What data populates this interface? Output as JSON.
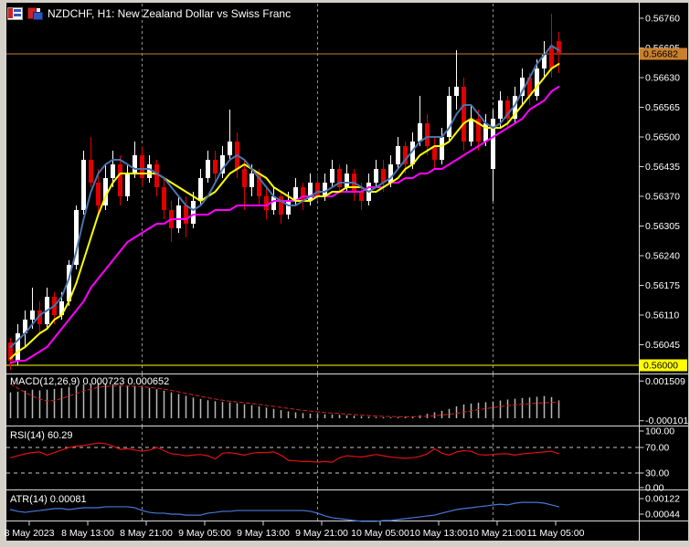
{
  "window": {
    "title": "NZDCHF, H1: New Zealand Dollar vs Swiss Franc"
  },
  "indicator_labels": {
    "macd": "MACD(12,26,9) 0.000723 0.000652",
    "rsi": "RSI(14) 60.29",
    "atr": "ATR(14) 0.00081"
  },
  "price_axis": {
    "tick_labels": [
      "0.56760",
      "0.56695",
      "0.56630",
      "0.56565",
      "0.56500",
      "0.56435",
      "0.56370",
      "0.56305",
      "0.56240",
      "0.56175",
      "0.56110",
      "0.56045"
    ],
    "current_price_label": "0.56682",
    "level_label": "0.56000"
  },
  "time_axis": {
    "labels": [
      "8 May 2023",
      "8 May 13:00",
      "8 May 21:00",
      "9 May 05:00",
      "9 May 13:00",
      "9 May 21:00",
      "10 May 05:00",
      "10 May 13:00",
      "10 May 21:00",
      "11 May 05:00"
    ]
  },
  "colors": {
    "background": "#000000",
    "frame": "#d4d0c8",
    "panel_border": "#dadada",
    "grid": "#8f8f8f",
    "bull": "#ffffff",
    "bear": "#e00000",
    "ma_fast": "#4a72aa",
    "ma_mid": "#ffff00",
    "ma_slow": "#ff00ff",
    "macd_hist": "#b8b8b8",
    "macd_signal": "#d42020",
    "rsi_line": "#e01010",
    "rsi_levels": "#c8c8c8",
    "atr_line": "#4878d8",
    "price_line": "#c9802e",
    "level_line": "#ffff00",
    "axis_text": "#ffffff",
    "marker_text": "#000000"
  },
  "chart_data": {
    "type": "candlestick",
    "symbol": "NZDCHF",
    "timeframe": "H1",
    "description": "New Zealand Dollar vs Swiss Franc",
    "current_price": 0.56682,
    "horizontal_line_level": 0.56,
    "price_axis_ticks": [
      0.5676,
      0.56695,
      0.5663,
      0.56565,
      0.565,
      0.56435,
      0.5637,
      0.56305,
      0.5624,
      0.56175,
      0.5611,
      0.56045
    ],
    "candles": [
      [
        0.5605,
        0.5606,
        0.5599,
        0.5601
      ],
      [
        0.5601,
        0.5609,
        0.56,
        0.5607
      ],
      [
        0.5607,
        0.5612,
        0.5604,
        0.561
      ],
      [
        0.561,
        0.5617,
        0.5608,
        0.5612
      ],
      [
        0.5612,
        0.5614,
        0.5607,
        0.5609
      ],
      [
        0.5609,
        0.5617,
        0.5608,
        0.5615
      ],
      [
        0.5615,
        0.5616,
        0.5609,
        0.5611
      ],
      [
        0.5611,
        0.5616,
        0.561,
        0.5614
      ],
      [
        0.5614,
        0.5623,
        0.5613,
        0.5622
      ],
      [
        0.5622,
        0.5635,
        0.5621,
        0.5634
      ],
      [
        0.5634,
        0.5647,
        0.5633,
        0.5645
      ],
      [
        0.5645,
        0.565,
        0.5639,
        0.564
      ],
      [
        0.564,
        0.5643,
        0.5633,
        0.5635
      ],
      [
        0.5635,
        0.5644,
        0.5634,
        0.5641
      ],
      [
        0.5641,
        0.5647,
        0.5639,
        0.5644
      ],
      [
        0.5644,
        0.5646,
        0.5635,
        0.5637
      ],
      [
        0.5637,
        0.5644,
        0.5636,
        0.5642
      ],
      [
        0.5642,
        0.5649,
        0.5641,
        0.5646
      ],
      [
        0.5646,
        0.5648,
        0.5639,
        0.5641
      ],
      [
        0.5641,
        0.5646,
        0.564,
        0.5644
      ],
      [
        0.5644,
        0.5645,
        0.5637,
        0.5639
      ],
      [
        0.5639,
        0.5641,
        0.5632,
        0.5634
      ],
      [
        0.5634,
        0.5636,
        0.5627,
        0.563
      ],
      [
        0.563,
        0.5637,
        0.5629,
        0.5635
      ],
      [
        0.5635,
        0.5637,
        0.5628,
        0.5631
      ],
      [
        0.5631,
        0.5638,
        0.563,
        0.5636
      ],
      [
        0.5636,
        0.5643,
        0.5635,
        0.5641
      ],
      [
        0.5641,
        0.5647,
        0.564,
        0.5645
      ],
      [
        0.5645,
        0.5647,
        0.564,
        0.5642
      ],
      [
        0.5642,
        0.5648,
        0.5641,
        0.5646
      ],
      [
        0.5646,
        0.5656,
        0.5645,
        0.5649
      ],
      [
        0.5649,
        0.5651,
        0.5641,
        0.5643
      ],
      [
        0.5643,
        0.5645,
        0.5634,
        0.5639
      ],
      [
        0.5639,
        0.5644,
        0.5637,
        0.5642
      ],
      [
        0.5642,
        0.5643,
        0.5635,
        0.5637
      ],
      [
        0.5637,
        0.5639,
        0.5632,
        0.5634
      ],
      [
        0.5634,
        0.5639,
        0.5633,
        0.5637
      ],
      [
        0.5637,
        0.5638,
        0.5631,
        0.5633
      ],
      [
        0.5633,
        0.5638,
        0.5632,
        0.5636
      ],
      [
        0.5636,
        0.5641,
        0.5635,
        0.5639
      ],
      [
        0.5639,
        0.564,
        0.5634,
        0.5636
      ],
      [
        0.5636,
        0.5642,
        0.5635,
        0.564
      ],
      [
        0.564,
        0.5642,
        0.5636,
        0.5637
      ],
      [
        0.5637,
        0.5642,
        0.5636,
        0.564
      ],
      [
        0.564,
        0.5645,
        0.5639,
        0.5643
      ],
      [
        0.5643,
        0.5644,
        0.5638,
        0.5639
      ],
      [
        0.5639,
        0.5644,
        0.5638,
        0.5642
      ],
      [
        0.5642,
        0.5643,
        0.5636,
        0.5638
      ],
      [
        0.5638,
        0.564,
        0.5634,
        0.5636
      ],
      [
        0.5636,
        0.5642,
        0.5635,
        0.564
      ],
      [
        0.564,
        0.5645,
        0.5639,
        0.5643
      ],
      [
        0.5643,
        0.5645,
        0.5638,
        0.564
      ],
      [
        0.564,
        0.5646,
        0.5639,
        0.5644
      ],
      [
        0.5644,
        0.565,
        0.5643,
        0.5648
      ],
      [
        0.5648,
        0.5649,
        0.5642,
        0.5644
      ],
      [
        0.5644,
        0.5651,
        0.5643,
        0.5649
      ],
      [
        0.5649,
        0.5659,
        0.5648,
        0.5653
      ],
      [
        0.5653,
        0.5655,
        0.5646,
        0.5648
      ],
      [
        0.5648,
        0.565,
        0.5643,
        0.5645
      ],
      [
        0.5645,
        0.5652,
        0.5644,
        0.565
      ],
      [
        0.565,
        0.5661,
        0.5649,
        0.5659
      ],
      [
        0.5659,
        0.5669,
        0.5656,
        0.5661
      ],
      [
        0.5661,
        0.5663,
        0.5647,
        0.5649
      ],
      [
        0.5649,
        0.5657,
        0.5648,
        0.5654
      ],
      [
        0.5654,
        0.5656,
        0.5647,
        0.5649
      ],
      [
        0.5649,
        0.5655,
        0.5648,
        0.5653
      ],
      [
        0.5643,
        0.5656,
        0.5636,
        0.5654
      ],
      [
        0.5654,
        0.566,
        0.5652,
        0.5658
      ],
      [
        0.5658,
        0.5659,
        0.5652,
        0.5654
      ],
      [
        0.5654,
        0.5661,
        0.5653,
        0.5659
      ],
      [
        0.5659,
        0.5665,
        0.5657,
        0.5663
      ],
      [
        0.5663,
        0.5664,
        0.5657,
        0.5659
      ],
      [
        0.5659,
        0.5667,
        0.5658,
        0.5665
      ],
      [
        0.5665,
        0.5671,
        0.5663,
        0.5668
      ],
      [
        0.567,
        0.5677,
        0.5663,
        0.5665
      ],
      [
        0.5671,
        0.5673,
        0.5664,
        0.56682
      ]
    ],
    "overlays": {
      "ma_fast_blue": [
        0.5604,
        0.56055,
        0.5607,
        0.5609,
        0.5611,
        0.5612,
        0.5613,
        0.5615,
        0.5619,
        0.5625,
        0.5632,
        0.5638,
        0.5642,
        0.5644,
        0.5645,
        0.5645,
        0.5644,
        0.5643,
        0.5643,
        0.5643,
        0.5642,
        0.5641,
        0.5639,
        0.5637,
        0.5635,
        0.5634,
        0.5635,
        0.5637,
        0.564,
        0.5643,
        0.5645,
        0.5646,
        0.5645,
        0.5643,
        0.5641,
        0.5639,
        0.5637,
        0.5636,
        0.5635,
        0.5635,
        0.5636,
        0.5637,
        0.5638,
        0.5638,
        0.5639,
        0.564,
        0.564,
        0.564,
        0.5639,
        0.5638,
        0.5639,
        0.564,
        0.5641,
        0.5643,
        0.5645,
        0.5647,
        0.5649,
        0.565,
        0.565,
        0.565,
        0.5652,
        0.5655,
        0.5657,
        0.5657,
        0.5655,
        0.5653,
        0.5652,
        0.5653,
        0.5655,
        0.5657,
        0.566,
        0.5663,
        0.5666,
        0.5668,
        0.567,
        0.5669
      ],
      "ma_medium_yellow": [
        0.56015,
        0.5603,
        0.5604,
        0.56055,
        0.5607,
        0.5608,
        0.561,
        0.5611,
        0.5614,
        0.5618,
        0.5623,
        0.5628,
        0.5633,
        0.5637,
        0.564,
        0.5642,
        0.5642,
        0.5642,
        0.5642,
        0.5642,
        0.5642,
        0.5641,
        0.564,
        0.5639,
        0.5638,
        0.5637,
        0.5636,
        0.5637,
        0.5638,
        0.564,
        0.5642,
        0.5643,
        0.5644,
        0.5643,
        0.5642,
        0.5641,
        0.5639,
        0.5638,
        0.5637,
        0.5636,
        0.5636,
        0.5636,
        0.5637,
        0.5637,
        0.5638,
        0.5638,
        0.5639,
        0.5639,
        0.5639,
        0.5638,
        0.5638,
        0.5639,
        0.564,
        0.5641,
        0.5643,
        0.5644,
        0.5646,
        0.5647,
        0.5648,
        0.5648,
        0.5649,
        0.5651,
        0.5653,
        0.5654,
        0.5653,
        0.5652,
        0.5652,
        0.5652,
        0.5653,
        0.5655,
        0.5657,
        0.5659,
        0.5661,
        0.5663,
        0.5665,
        0.5666
      ],
      "ma_slow_magenta": [
        0.56005,
        0.5601,
        0.5601,
        0.5602,
        0.5603,
        0.5604,
        0.5606,
        0.5608,
        0.561,
        0.5612,
        0.5614,
        0.5617,
        0.5619,
        0.5621,
        0.5623,
        0.5625,
        0.5627,
        0.5628,
        0.5629,
        0.563,
        0.5631,
        0.5631,
        0.5632,
        0.5632,
        0.5632,
        0.5633,
        0.5633,
        0.5633,
        0.5634,
        0.5634,
        0.5634,
        0.5635,
        0.5635,
        0.5635,
        0.5635,
        0.5635,
        0.5636,
        0.5636,
        0.5636,
        0.5636,
        0.5637,
        0.5637,
        0.5637,
        0.5637,
        0.5637,
        0.5638,
        0.5638,
        0.5638,
        0.5638,
        0.5639,
        0.5639,
        0.5639,
        0.564,
        0.564,
        0.5641,
        0.5641,
        0.5642,
        0.5642,
        0.5643,
        0.5643,
        0.5644,
        0.5645,
        0.5646,
        0.5647,
        0.5648,
        0.5649,
        0.565,
        0.5651,
        0.5652,
        0.5653,
        0.5654,
        0.5656,
        0.5657,
        0.5658,
        0.566,
        0.5661
      ]
    },
    "indicators": {
      "macd": {
        "label": "MACD(12,26,9)",
        "current_macd": 0.000723,
        "current_signal": 0.000652,
        "axis_labels": [
          0.001509,
          -0.000101
        ],
        "histogram": [
          0.00105,
          0.00108,
          0.00112,
          0.00116,
          0.00113,
          0.00116,
          0.00119,
          0.00122,
          0.00127,
          0.00132,
          0.00137,
          0.0014,
          0.00142,
          0.00141,
          0.00138,
          0.00135,
          0.00132,
          0.0013,
          0.00127,
          0.00123,
          0.00118,
          0.00112,
          0.00105,
          0.00098,
          0.00091,
          0.00084,
          0.00078,
          0.00073,
          0.00069,
          0.00066,
          0.00064,
          0.00061,
          0.00057,
          0.00053,
          0.00048,
          0.00043,
          0.00038,
          0.00033,
          0.00028,
          0.00024,
          0.00021,
          0.00019,
          0.00017,
          0.00016,
          0.00015,
          0.00014,
          0.00012,
          0.0001,
          8e-05,
          6e-05,
          5e-05,
          4e-05,
          4e-05,
          5e-05,
          6e-05,
          8e-05,
          0.00012,
          0.00018,
          0.00024,
          0.0003,
          0.00038,
          0.00048,
          0.00056,
          0.0006,
          0.00063,
          0.00065,
          0.00068,
          0.00072,
          0.00076,
          0.00079,
          0.00082,
          0.00084,
          0.00087,
          0.0009,
          0.00086,
          0.000723
        ],
        "signal": [
          0.0014,
          0.00122,
          0.00105,
          0.0009,
          0.00078,
          0.0007,
          0.00072,
          0.0008,
          0.0009,
          0.001,
          0.0011,
          0.00119,
          0.00125,
          0.00129,
          0.00131,
          0.00132,
          0.00131,
          0.0013,
          0.00128,
          0.00125,
          0.00122,
          0.00118,
          0.00113,
          0.00107,
          0.00101,
          0.00095,
          0.00089,
          0.00083,
          0.00078,
          0.00073,
          0.00069,
          0.00066,
          0.00063,
          0.0006,
          0.00056,
          0.00052,
          0.00048,
          0.00044,
          0.0004,
          0.00036,
          0.00032,
          0.00029,
          0.00026,
          0.00023,
          0.00021,
          0.00019,
          0.00017,
          0.00015,
          0.00013,
          0.00011,
          9e-05,
          8e-05,
          7e-05,
          6e-05,
          6e-05,
          6e-05,
          7e-05,
          8e-05,
          0.0001,
          0.00013,
          0.00016,
          0.0002,
          0.00025,
          0.0003,
          0.00035,
          0.00039,
          0.00043,
          0.00047,
          0.00051,
          0.00054,
          0.00057,
          0.00059,
          0.00061,
          0.00063,
          0.00064,
          0.000652
        ]
      },
      "rsi": {
        "label": "RSI(14)",
        "current": 60.29,
        "axis_labels": [
          100.0,
          70.0,
          30.0,
          0.0
        ],
        "levels": [
          70,
          30
        ],
        "series": [
          54,
          57,
          60,
          62,
          63,
          58,
          62,
          66,
          70,
          72,
          73,
          75,
          77,
          76,
          72,
          67,
          68,
          66,
          64,
          66,
          70,
          65,
          60,
          59,
          57,
          58,
          59,
          57,
          52,
          61,
          62,
          60,
          58,
          61,
          62,
          62,
          63,
          58,
          50,
          49,
          48,
          48,
          47,
          48,
          47,
          54,
          57,
          56,
          55,
          57,
          59,
          57,
          55,
          54,
          53,
          54,
          56,
          60,
          68,
          61,
          58,
          63,
          65,
          64,
          59,
          58,
          59,
          60,
          60,
          58,
          60,
          61,
          62,
          63,
          64,
          60.29
        ]
      },
      "atr": {
        "label": "ATR(14)",
        "current": 0.00081,
        "axis_labels": [
          0.00122,
          0.00044
        ],
        "series": [
          0.00067,
          0.00058,
          0.00053,
          0.00058,
          0.00062,
          0.00067,
          0.00072,
          0.00072,
          0.00067,
          0.00072,
          0.00076,
          0.00076,
          0.00076,
          0.00081,
          0.00081,
          0.00081,
          0.00081,
          0.00076,
          0.00062,
          0.00053,
          0.00049,
          0.00049,
          0.00044,
          0.00044,
          0.00039,
          0.00039,
          0.00039,
          0.00049,
          0.00053,
          0.00058,
          0.00058,
          0.00062,
          0.00062,
          0.00062,
          0.00062,
          0.00062,
          0.00062,
          0.00062,
          0.00062,
          0.00062,
          0.00062,
          0.00058,
          0.00049,
          0.00035,
          0.00026,
          0.00021,
          0.00017,
          0.00012,
          8e-05,
          8e-05,
          8e-05,
          0.00012,
          0.00012,
          0.00017,
          0.00021,
          0.00026,
          0.0003,
          0.00035,
          0.00039,
          0.00049,
          0.00058,
          0.00067,
          0.00072,
          0.00076,
          0.00081,
          0.00085,
          0.0009,
          0.00094,
          0.0009,
          0.00099,
          0.00103,
          0.00103,
          0.00103,
          0.00099,
          0.0009,
          0.00081
        ]
      }
    }
  }
}
